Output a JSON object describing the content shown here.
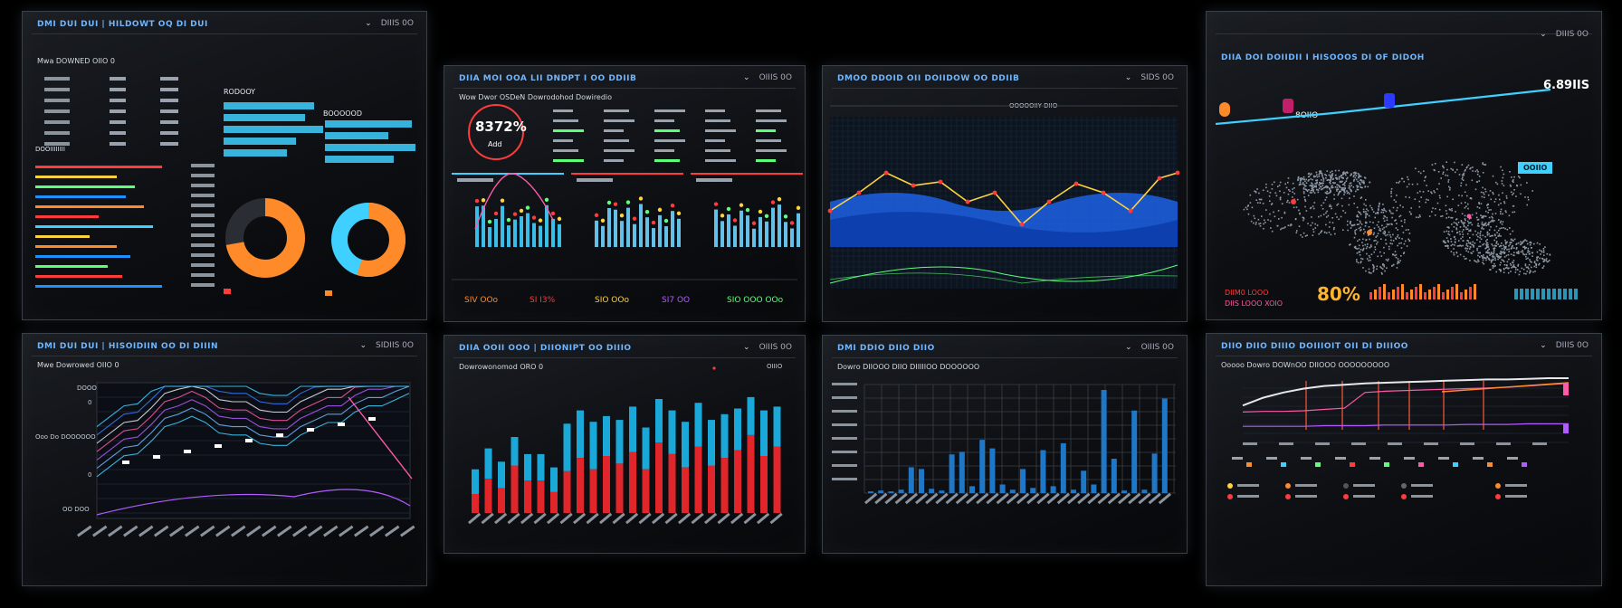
{
  "panels": {
    "p1": {
      "title": "DMI DUI DUI | HILDOWT OQ DI DUI",
      "subtitle": "Mwa DOWNED OIIO 0",
      "control": "DIIIS 0O",
      "section_left": "DOOIIIIIIII",
      "section_right_a": "RODOOY",
      "section_right_b": "BOOOOOD"
    },
    "p2": {
      "title": "DIIA MOI OOA LII DNDPT I OO DDIIB",
      "subtitle": "Wow Dwor OSDeN Dowrodohod Dowiredio",
      "control": "OIIIS 0O",
      "kpi": "8372%",
      "kpi_caption": "Add",
      "footer": [
        "SIV OOo",
        "SI I3%",
        "SIO OOo",
        "SI7 OO",
        "SIO OOO OOo"
      ]
    },
    "p3": {
      "title": "DMOO DDOID OII DOIIDOW OO DDIIB",
      "control": "SIDS 0O",
      "legend_center": "OOOOOIIY DIIO"
    },
    "p4": {
      "title": "DIIA DOI DOIIDII I HISOOOS DI OF DIDOH",
      "control": "DIIIS 0O",
      "stat": "8OIIO",
      "metric": "6.89IIS",
      "percent": "80%",
      "badge": "OOIIO",
      "alert": "DIIM0 LOOO",
      "alert2": "DIIS LOOO XOIO"
    },
    "p5": {
      "title": "DMI DUI DUI | HISOIDIIN OO DI DIIIN",
      "subtitle": "Mwe Dowrowed OIIO 0",
      "control": "SIDIIS 0O",
      "yticks": [
        "DOOOO",
        "0",
        "Ooo Do DOOOOOO",
        "0",
        "OO DOO"
      ]
    },
    "p6": {
      "title": "DIIA OOII OOO | DIIONIPT OO DIIIO",
      "subtitle": "Dowrowonomod ORO 0",
      "control": "OIIIS 0O",
      "right_note": "OIIIO"
    },
    "p7": {
      "title": "DMI DDIO DIIO DIIO",
      "subtitle": "Dowro DIIOOO DIIO DIIIIIOO DOOOOOO",
      "control": "OIIIS 0O"
    },
    "p8": {
      "title": "DIIO DIIO DIIIO DOIIIOIT OII DI DIIIOO",
      "subtitle": "Ooooo Dowro DOWnOO DIIOOO OOOOOOOOO",
      "control": "DIIIS 0O"
    }
  },
  "colors": {
    "cyan": "#3fd0ff",
    "orange": "#ff8a2a",
    "red": "#ff3b3b",
    "yellow": "#ffd23f",
    "green": "#5dff7a",
    "purple": "#b25cff",
    "blue": "#1e90ff",
    "pink": "#ff5aa8",
    "white": "#e8ecf2"
  },
  "chart_data": [
    {
      "type": "bar",
      "title": "",
      "series": [
        {
          "name": "",
          "values": [
            14,
            18,
            22,
            25,
            30,
            36,
            40,
            42,
            38,
            35,
            33,
            32,
            30,
            28,
            27,
            34,
            36,
            38,
            40,
            44,
            46,
            48,
            50,
            52
          ]
        }
      ]
    },
    {
      "type": "bar",
      "title": "",
      "series": [
        {
          "name": "",
          "values": [
            46,
            68,
            54,
            80,
            62,
            62,
            48,
            94,
            108,
            96,
            102,
            98,
            112,
            90,
            120,
            108,
            96,
            116,
            98,
            104,
            110,
            122,
            108,
            112
          ]
        },
        {
          "name": "",
          "values": [
            20,
            36,
            26,
            50,
            34,
            34,
            22,
            44,
            58,
            46,
            60,
            52,
            64,
            46,
            74,
            62,
            48,
            70,
            50,
            58,
            66,
            82,
            60,
            70
          ]
        }
      ]
    },
    {
      "type": "bar",
      "title": "",
      "series": [
        {
          "name": "",
          "values": [
            2,
            3,
            2,
            4,
            30,
            28,
            5,
            3,
            45,
            48,
            8,
            62,
            52,
            10,
            4,
            28,
            6,
            50,
            8,
            58,
            4,
            26,
            10,
            120,
            40,
            3,
            96,
            4,
            46,
            110
          ]
        }
      ]
    },
    {
      "type": "line",
      "title": "",
      "series": [
        {
          "name": "",
          "values": [
            40,
            52,
            60,
            66,
            70,
            72,
            74,
            75,
            76,
            77,
            78,
            79,
            80,
            80,
            81,
            82,
            82
          ]
        },
        {
          "name": "",
          "values": [
            30,
            31,
            31,
            32,
            34,
            36,
            60,
            62,
            63,
            64,
            65,
            66,
            67,
            68,
            70,
            72,
            74
          ]
        },
        {
          "name": "",
          "values": [
            8,
            8,
            8,
            8,
            9,
            9,
            9,
            10,
            10,
            10,
            10,
            11,
            11,
            11,
            12,
            12,
            12
          ]
        }
      ]
    }
  ]
}
